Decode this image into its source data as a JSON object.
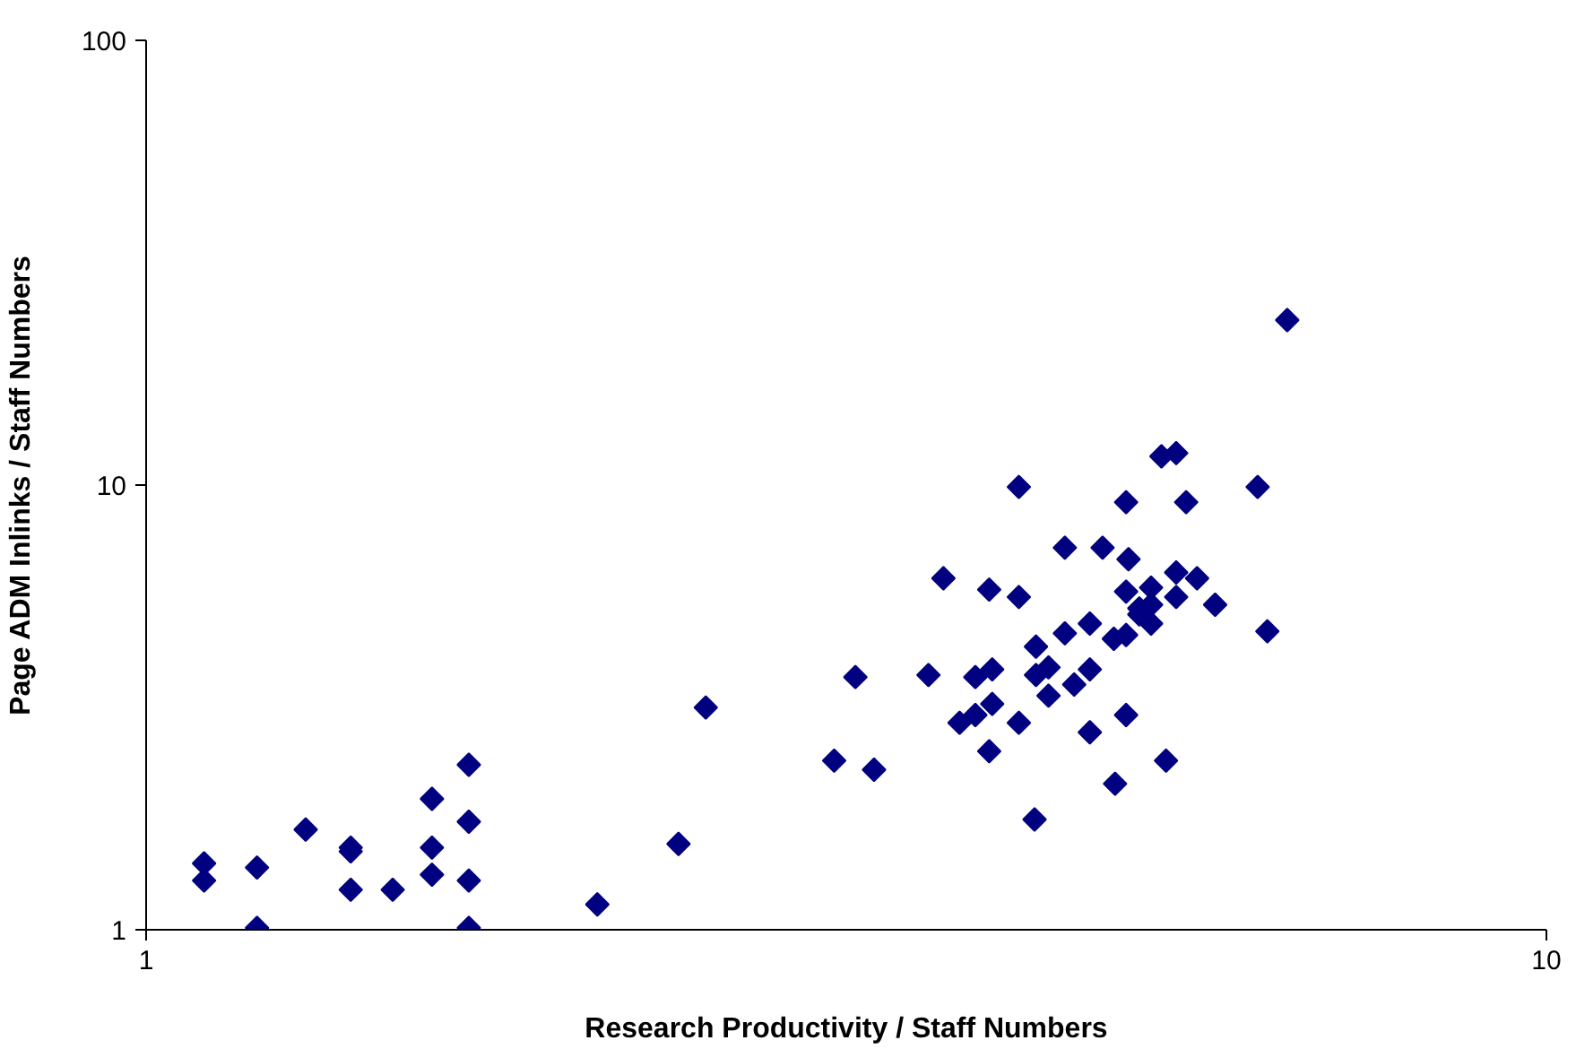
{
  "chart_data": {
    "type": "scatter",
    "xlabel": "Research Productivity / Staff Numbers",
    "ylabel": "Page ADM Inlinks / Staff Numbers",
    "log": "xy",
    "xlim": [
      1,
      10
    ],
    "ylim": [
      1,
      100
    ],
    "xticks": [
      1,
      10
    ],
    "yticks": [
      1,
      10,
      100
    ],
    "grid": false,
    "marker": "diamond",
    "series": [
      {
        "color": "#000080",
        "x": [
          1.1,
          1.1,
          1.2,
          1.2,
          1.3,
          1.4,
          1.4,
          1.4,
          1.5,
          1.6,
          1.6,
          1.6,
          1.7,
          1.7,
          1.7,
          1.7,
          2.1,
          2.4,
          2.51,
          6.53,
          5.31,
          5.44,
          4.2,
          6.22,
          5.01,
          5.53,
          4.53,
          4.82,
          5.03,
          3.71,
          4.0,
          4.2,
          5.44,
          5.63,
          5.01,
          5.22,
          5.44,
          5.8,
          5.12,
          5.22,
          5.12,
          5.22,
          6.32,
          4.72,
          4.53,
          4.91,
          5.01,
          4.32,
          3.21,
          3.62,
          3.91,
          4.02,
          4.32,
          4.41,
          4.72,
          4.6,
          4.41,
          3.81,
          3.91,
          4.02,
          4.2,
          5.01,
          4.72,
          4.0,
          3.1,
          3.31,
          5.35,
          4.92,
          4.31
        ],
        "values": [
          1.41,
          1.29,
          1.38,
          1.01,
          1.68,
          1.53,
          1.5,
          1.23,
          1.23,
          1.97,
          1.53,
          1.33,
          2.35,
          1.75,
          1.29,
          1.01,
          1.14,
          1.56,
          3.16,
          23.5,
          11.6,
          11.8,
          9.9,
          9.9,
          9.15,
          9.15,
          7.23,
          7.23,
          6.81,
          6.17,
          5.82,
          5.6,
          6.36,
          6.17,
          5.76,
          5.88,
          5.6,
          5.38,
          5.28,
          5.38,
          5.12,
          4.88,
          4.69,
          4.88,
          4.64,
          4.51,
          4.6,
          4.33,
          3.7,
          3.74,
          3.7,
          3.85,
          3.74,
          3.89,
          3.85,
          3.56,
          3.36,
          2.92,
          3.04,
          3.22,
          2.92,
          3.04,
          2.78,
          2.52,
          2.4,
          2.29,
          2.4,
          2.13,
          1.77
        ]
      }
    ]
  }
}
